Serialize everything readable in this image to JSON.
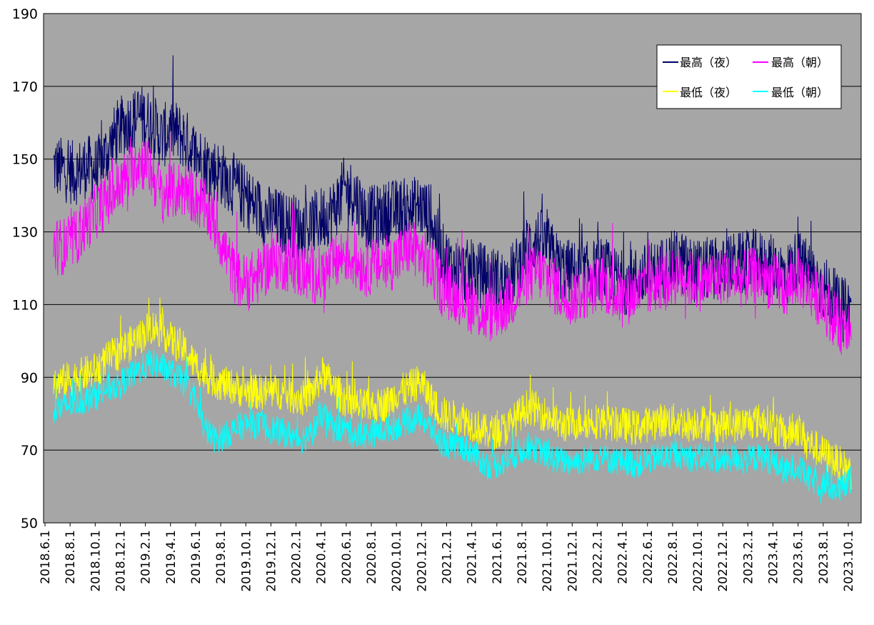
{
  "chart_data": {
    "type": "line",
    "title": "",
    "xlabel": "",
    "ylabel": "",
    "ylim": [
      50,
      190
    ],
    "yticks": [
      "50",
      "70",
      "90",
      "110",
      "130",
      "150",
      "170",
      "190"
    ],
    "x_tick_labels": [
      "2018.6.1",
      "2018.8.1",
      "2018.10.1",
      "2018.12.1",
      "2019.2.1",
      "2019.4.1",
      "2019.6.1",
      "2019.8.1",
      "2019.10.1",
      "2019.12.1",
      "2020.2.1",
      "2020.4.1",
      "2020.6.1",
      "2020.8.1",
      "2020.10.1",
      "2020.12.1",
      "2021.2.1",
      "2021.4.1",
      "2021.6.1",
      "2021.8.1",
      "2021.10.1",
      "2021.12.1",
      "2022.2.1",
      "2022.4.1",
      "2022.6.1",
      "2022.8.1",
      "2022.10.1",
      "2022.12.1",
      "2023.2.1",
      "2023.4.1",
      "2023.6.1",
      "2023.8.1",
      "2023.10.1"
    ],
    "background_color": "#a6a6a6",
    "grid": true,
    "legend_position": "top-right",
    "series_trend_note_x": "values are monthly averages; daily traces fluctuate around them",
    "series": [
      {
        "name": "最高（夜）",
        "color": "#000066",
        "amplitude": 9,
        "values": [
          148,
          147,
          146,
          148,
          147,
          152,
          158,
          160,
          162,
          160,
          156,
          158,
          156,
          152,
          149,
          147,
          145,
          142,
          139,
          136,
          134,
          133,
          132,
          131,
          132,
          134,
          136,
          142,
          140,
          134,
          134,
          135,
          136,
          136,
          137,
          134,
          124,
          120,
          119,
          119,
          118,
          117,
          116,
          120,
          126,
          128,
          125,
          120,
          119,
          118,
          119,
          120,
          117,
          116,
          117,
          118,
          119,
          121,
          122,
          120,
          119,
          120,
          119,
          121,
          121,
          122,
          121,
          120,
          118,
          122,
          119,
          116,
          113,
          108,
          109
        ]
      },
      {
        "name": "最高（朝）",
        "color": "#ff00ff",
        "amplitude": 8,
        "values": [
          126,
          126,
          128,
          132,
          136,
          139,
          142,
          146,
          150,
          147,
          140,
          141,
          142,
          140,
          137,
          132,
          124,
          117,
          116,
          118,
          121,
          122,
          121,
          119,
          118,
          118,
          121,
          124,
          122,
          120,
          121,
          121,
          123,
          126,
          124,
          120,
          115,
          113,
          112,
          109,
          107,
          108,
          110,
          113,
          118,
          119,
          117,
          113,
          112,
          113,
          115,
          116,
          113,
          112,
          113,
          114,
          116,
          117,
          118,
          117,
          116,
          117,
          118,
          118,
          117,
          118,
          117,
          116,
          114,
          118,
          115,
          112,
          108,
          104,
          106
        ]
      },
      {
        "name": "最低（夜）",
        "color": "#ffff00",
        "amplitude": 5,
        "values": [
          88,
          89,
          90,
          91,
          92,
          95,
          97,
          99,
          101,
          104,
          103,
          100,
          98,
          94,
          91,
          89,
          88,
          87,
          86,
          86,
          86,
          86,
          85,
          84,
          86,
          91,
          87,
          84,
          82,
          82,
          82,
          83,
          86,
          87,
          89,
          84,
          80,
          79,
          79,
          77,
          75,
          75,
          76,
          79,
          82,
          81,
          79,
          77,
          77,
          78,
          78,
          78,
          77,
          77,
          76,
          77,
          78,
          78,
          78,
          77,
          78,
          77,
          77,
          77,
          77,
          78,
          78,
          76,
          74,
          76,
          72,
          70,
          68,
          66,
          64
        ]
      },
      {
        "name": "最低（朝）",
        "color": "#00ffff",
        "amplitude": 4,
        "values": [
          81,
          82,
          83,
          84,
          85,
          87,
          88,
          90,
          92,
          94,
          93,
          91,
          89,
          85,
          76,
          73,
          74,
          76,
          77,
          77,
          76,
          75,
          74,
          73,
          75,
          80,
          76,
          76,
          74,
          74,
          75,
          76,
          77,
          78,
          79,
          76,
          72,
          71,
          71,
          69,
          66,
          66,
          67,
          69,
          71,
          70,
          68,
          67,
          67,
          67,
          68,
          68,
          67,
          67,
          66,
          67,
          68,
          68,
          69,
          68,
          68,
          68,
          67,
          68,
          67,
          68,
          68,
          66,
          64,
          66,
          62,
          61,
          60,
          59,
          62
        ]
      }
    ]
  }
}
